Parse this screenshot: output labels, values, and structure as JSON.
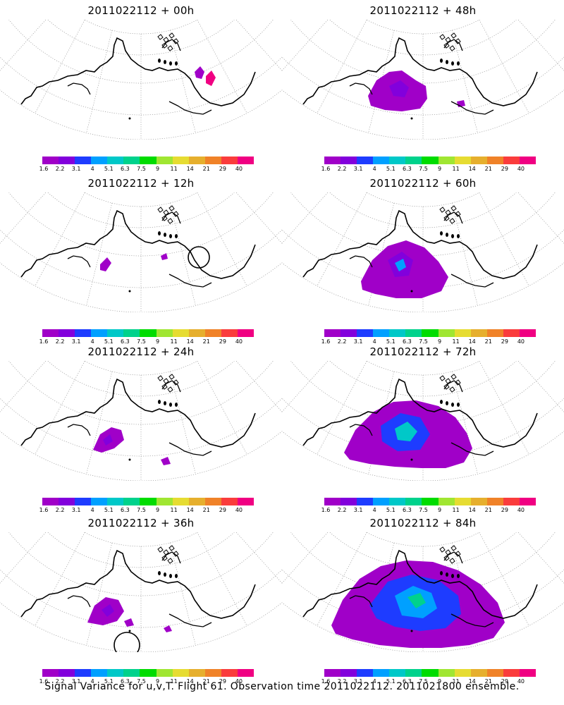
{
  "colorbar": {
    "colors": [
      "#a000c8",
      "#8200dc",
      "#1e3cff",
      "#00a0ff",
      "#00c8c8",
      "#00d28c",
      "#00dc00",
      "#a0e632",
      "#e6dc32",
      "#e6af2d",
      "#f08228",
      "#fa3c3c",
      "#f00082"
    ],
    "ticks": [
      "1.6",
      "2.2",
      "3.1",
      "4",
      "5.1",
      "6.3",
      "7.5",
      "9",
      "11",
      "14",
      "21",
      "29",
      "40"
    ]
  },
  "panels": [
    {
      "title": "2011022112 + 00h"
    },
    {
      "title": "2011022112 + 48h"
    },
    {
      "title": "2011022112 + 12h"
    },
    {
      "title": "2011022112 + 60h"
    },
    {
      "title": "2011022112 + 24h"
    },
    {
      "title": "2011022112 + 72h"
    },
    {
      "title": "2011022112 + 36h"
    },
    {
      "title": "2011022112 + 84h"
    }
  ],
  "caption": "Signal Variance for u,v,T. Flight 61. Observation time 2011022112. 2011021800 ensemble."
}
